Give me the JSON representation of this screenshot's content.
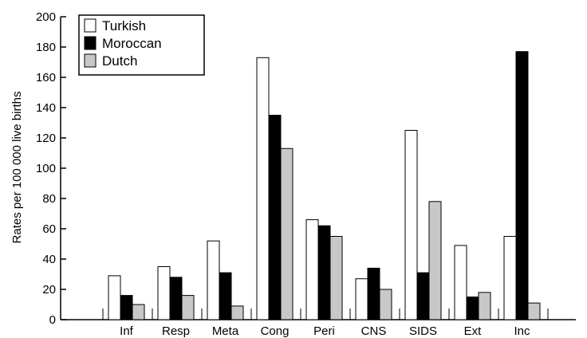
{
  "chart_data": {
    "type": "bar",
    "categories": [
      "Inf",
      "Resp",
      "Meta",
      "Cong",
      "Peri",
      "CNS",
      "SIDS",
      "Ext",
      "Inc"
    ],
    "series": [
      {
        "name": "Turkish",
        "color": "#ffffff",
        "values": [
          29,
          35,
          52,
          173,
          66,
          27,
          125,
          49,
          55
        ]
      },
      {
        "name": "Moroccan",
        "color": "#000000",
        "values": [
          16,
          28,
          31,
          135,
          62,
          34,
          31,
          15,
          177
        ]
      },
      {
        "name": "Dutch",
        "color": "#c8c8c8",
        "values": [
          10,
          16,
          9,
          113,
          55,
          20,
          78,
          18,
          11
        ]
      }
    ],
    "title": "",
    "xlabel": "",
    "ylabel": "Rates per 100 000 live births",
    "ylim": [
      0,
      200
    ],
    "yticks": [
      "0",
      "20",
      "40",
      "60",
      "80",
      "100",
      "120",
      "140",
      "160",
      "180",
      "200"
    ],
    "grid": false,
    "legend_position": "top-left"
  }
}
